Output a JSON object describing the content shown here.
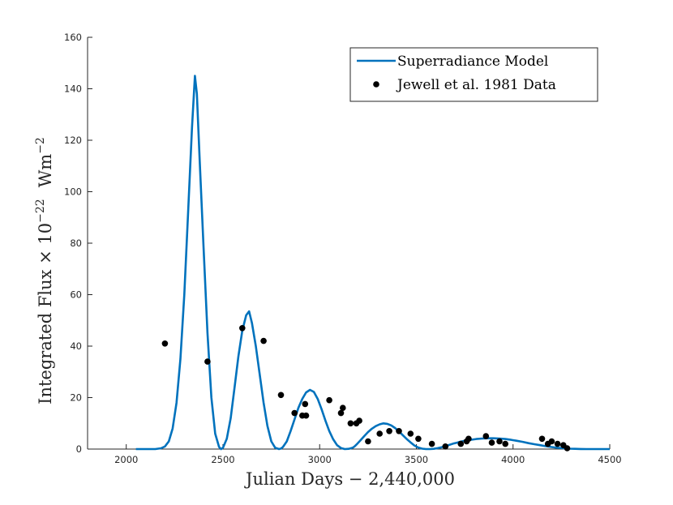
{
  "chart_data": {
    "type": "line",
    "title": "",
    "xlabel": "Julian Days − 2,440,000",
    "ylabel_main": "Integrated Flux × 10",
    "ylabel_exponent": "−22",
    "ylabel_units": "Wm",
    "ylabel_units_exponent": "−2",
    "xlim": [
      1800,
      4500
    ],
    "ylim": [
      0,
      160
    ],
    "xticks": [
      2000,
      2500,
      3000,
      3500,
      4000,
      4500
    ],
    "yticks": [
      0,
      20,
      40,
      60,
      80,
      100,
      120,
      140,
      160
    ],
    "grid": false,
    "legend_position": "top-right",
    "series": [
      {
        "name": "Superradiance Model",
        "kind": "line",
        "color": "#0072BD",
        "x": [
          2050,
          2100,
          2150,
          2180,
          2200,
          2220,
          2240,
          2260,
          2280,
          2300,
          2320,
          2340,
          2355,
          2365,
          2380,
          2400,
          2420,
          2440,
          2460,
          2480,
          2490,
          2500,
          2520,
          2540,
          2560,
          2580,
          2600,
          2620,
          2635,
          2650,
          2670,
          2690,
          2710,
          2730,
          2750,
          2770,
          2790,
          2800,
          2810,
          2830,
          2850,
          2870,
          2890,
          2910,
          2930,
          2950,
          2970,
          2990,
          3010,
          3030,
          3050,
          3070,
          3090,
          3110,
          3130,
          3150,
          3170,
          3180,
          3190,
          3210,
          3230,
          3250,
          3270,
          3290,
          3310,
          3330,
          3350,
          3370,
          3390,
          3410,
          3430,
          3450,
          3470,
          3490,
          3510,
          3530,
          3550,
          3570,
          3590,
          3610,
          3630,
          3650,
          3670,
          3690,
          3710,
          3730,
          3750,
          3780,
          3810,
          3840,
          3870,
          3900,
          3930,
          3960,
          3990,
          4020,
          4050,
          4080,
          4110,
          4140,
          4170,
          4200,
          4230,
          4260,
          4290,
          4320,
          4350,
          4380,
          4410,
          4440,
          4470,
          4500
        ],
        "y": [
          0,
          0,
          0,
          0.3,
          1,
          3,
          8,
          18,
          35,
          60,
          92,
          125,
          145,
          138,
          112,
          78,
          45,
          20,
          6,
          0.8,
          0,
          0.5,
          4,
          12,
          24,
          36,
          46,
          52,
          53.5,
          49,
          40,
          29,
          18,
          9,
          3,
          0.5,
          0,
          0.2,
          0.8,
          3,
          7,
          11.5,
          16,
          19.5,
          22,
          23,
          22.2,
          19.5,
          15.5,
          11,
          7,
          3.8,
          1.5,
          0.4,
          0,
          0.1,
          0.5,
          1,
          1.7,
          3.3,
          5,
          6.6,
          7.9,
          8.9,
          9.6,
          10,
          9.8,
          9.2,
          8.2,
          6.9,
          5.4,
          3.9,
          2.6,
          1.4,
          0.6,
          0.15,
          0,
          0,
          0.1,
          0.35,
          0.7,
          1.1,
          1.6,
          2.1,
          2.5,
          2.9,
          3.2,
          3.6,
          3.9,
          4.1,
          4.2,
          4.2,
          4.1,
          3.9,
          3.6,
          3.2,
          2.8,
          2.3,
          1.9,
          1.5,
          1.1,
          0.8,
          0.5,
          0.3,
          0.15,
          0.08,
          0.03,
          0,
          0,
          0,
          0,
          0
        ]
      },
      {
        "name": "Jewell et al. 1981 Data",
        "kind": "scatter",
        "color": "#000000",
        "x": [
          2200,
          2420,
          2600,
          2710,
          2800,
          2870,
          2910,
          2930,
          2925,
          3050,
          3110,
          3120,
          3160,
          3190,
          3205,
          3250,
          3310,
          3360,
          3410,
          3470,
          3510,
          3580,
          3650,
          3730,
          3760,
          3770,
          3860,
          3890,
          3930,
          3960,
          4150,
          4180,
          4200,
          4230,
          4260,
          4280
        ],
        "y": [
          41,
          34,
          47,
          42,
          21,
          14,
          13,
          13,
          17.5,
          19,
          14,
          16,
          10,
          10,
          11,
          3,
          6,
          7,
          7,
          6,
          4,
          2,
          1,
          2,
          3,
          4,
          5,
          2.5,
          3,
          2,
          4,
          2,
          3,
          2,
          1.5,
          0.3
        ]
      }
    ]
  }
}
